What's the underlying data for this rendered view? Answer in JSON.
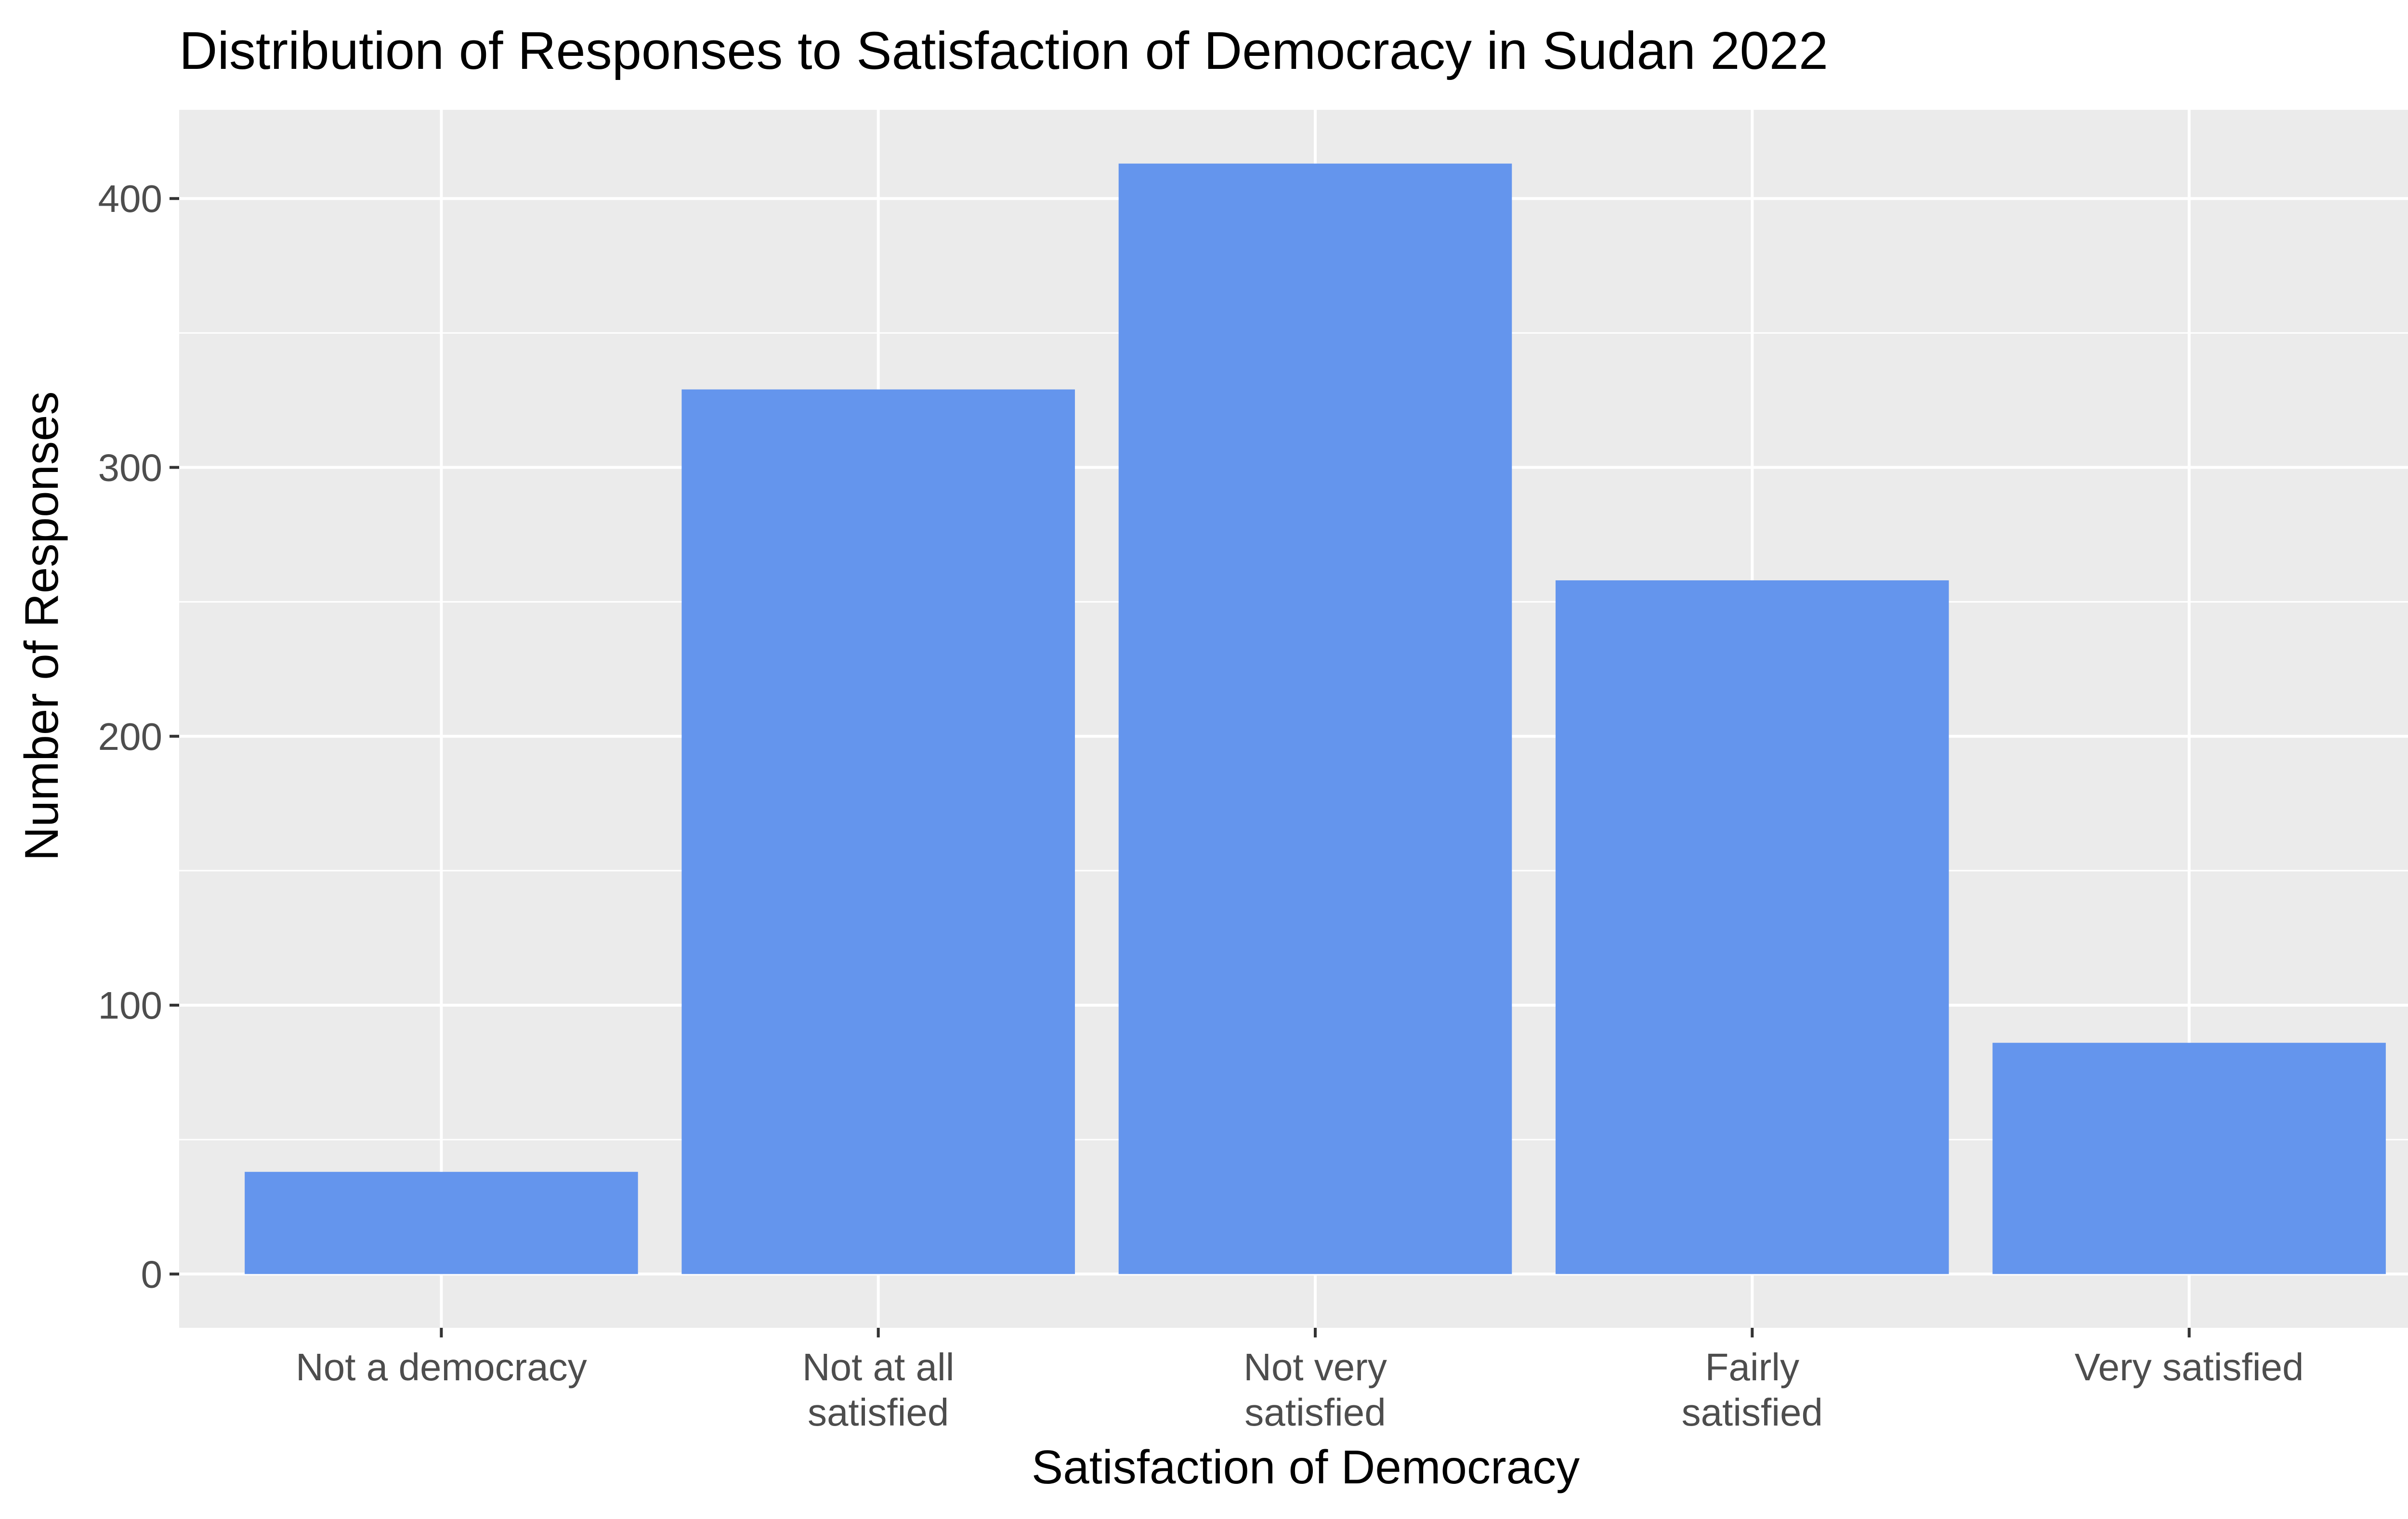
{
  "chart_data": {
    "type": "bar",
    "title": "Distribution of Responses to Satisfaction of Democracy in Sudan 2022",
    "xlabel": "Satisfaction of Democracy",
    "ylabel": "Number of Responses",
    "categories": [
      [
        "Not a democracy"
      ],
      [
        "Not at all",
        "satisfied"
      ],
      [
        "Not very",
        "satisfied"
      ],
      [
        "Fairly",
        "satisfied"
      ],
      [
        "Very satisfied"
      ]
    ],
    "values": [
      38,
      329,
      413,
      258,
      86
    ],
    "yticks": [
      0,
      100,
      200,
      300,
      400
    ],
    "ylim": [
      -20,
      433
    ],
    "grid": true,
    "legend": "none",
    "colors": {
      "bar": "#6495ED",
      "panel": "#EBEBEB",
      "grid": "#FFFFFF",
      "tick": "#333333"
    }
  }
}
